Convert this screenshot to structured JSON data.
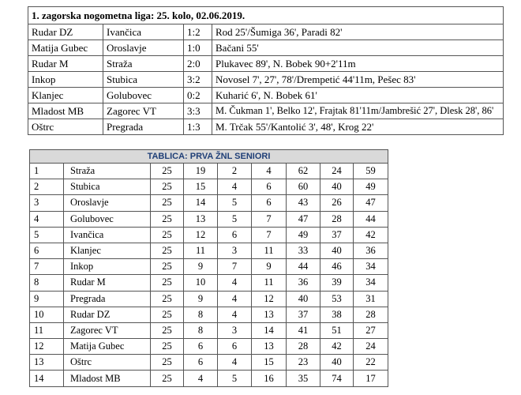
{
  "results": {
    "title": "1. zagorska nogometna liga: 25. kolo, 02.06.2019.",
    "rows": [
      [
        "Rudar DZ",
        "Ivančica",
        "1:2",
        "Rod 25'/Šumiga 36', Paradi 82'"
      ],
      [
        "Matija Gubec",
        "Oroslavje",
        "1:0",
        "Bačani 55'"
      ],
      [
        "Rudar M",
        "Straža",
        "2:0",
        "Plukavec 89', N. Bobek 90+2'11m"
      ],
      [
        "Inkop",
        "Stubica",
        "3:2",
        "Novosel 7', 27', 78'/Drempetić 44'11m, Pešec 83'"
      ],
      [
        "Klanjec",
        "Golubovec",
        "0:2",
        "Kuharić 6', N. Bobek 61'"
      ],
      [
        "Mladost MB",
        "Zagorec VT",
        "3:3",
        "M. Čukman 1', Belko 12', Frajtak 81'11m/Jambrešić 27', Dlesk 28', 86'"
      ],
      [
        "Oštrc",
        "Pregrada",
        "1:3",
        "M. Trčak 55'/Kantolić 3', 48', Krog 22'"
      ]
    ]
  },
  "standings": {
    "title": "TABLICA: PRVA ŽNL SENIORI",
    "rows": [
      [
        1,
        "Straža",
        25,
        19,
        2,
        4,
        62,
        24,
        59
      ],
      [
        2,
        "Stubica",
        25,
        15,
        4,
        6,
        60,
        40,
        49
      ],
      [
        3,
        "Oroslavje",
        25,
        14,
        5,
        6,
        43,
        26,
        47
      ],
      [
        4,
        "Golubovec",
        25,
        13,
        5,
        7,
        47,
        28,
        44
      ],
      [
        5,
        "Ivančica",
        25,
        12,
        6,
        7,
        49,
        37,
        42
      ],
      [
        6,
        "Klanjec",
        25,
        11,
        3,
        11,
        33,
        40,
        36
      ],
      [
        7,
        "Inkop",
        25,
        9,
        7,
        9,
        44,
        46,
        34
      ],
      [
        8,
        "Rudar M",
        25,
        10,
        4,
        11,
        36,
        39,
        34
      ],
      [
        9,
        "Pregrada",
        25,
        9,
        4,
        12,
        40,
        53,
        31
      ],
      [
        10,
        "Rudar DZ",
        25,
        8,
        4,
        13,
        37,
        38,
        28
      ],
      [
        11,
        "Zagorec VT",
        25,
        8,
        3,
        14,
        41,
        51,
        27
      ],
      [
        12,
        "Matija Gubec",
        25,
        6,
        6,
        13,
        28,
        42,
        24
      ],
      [
        13,
        "Oštrc",
        25,
        6,
        4,
        15,
        23,
        40,
        22
      ],
      [
        14,
        "Mladost MB",
        25,
        4,
        5,
        16,
        35,
        74,
        17
      ]
    ]
  }
}
